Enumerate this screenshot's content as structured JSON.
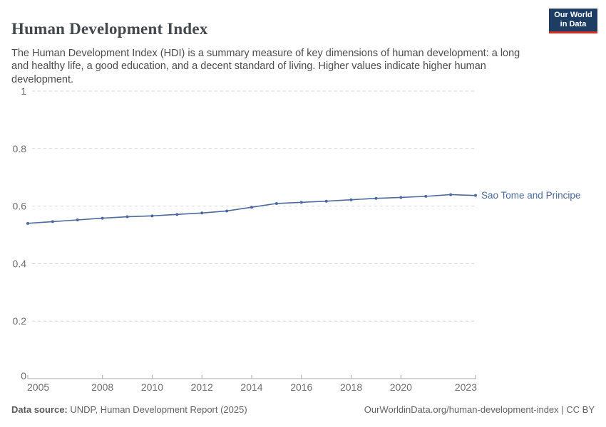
{
  "header": {
    "title": "Human Development Index",
    "subtitle": "The Human Development Index (HDI) is a summary measure of key dimensions of human development: a long and healthy life, a good education, and a decent standard of living. Higher values indicate higher human development.",
    "logo": {
      "line1": "Our World",
      "line2": "in Data"
    }
  },
  "chart_data": {
    "type": "line",
    "title": "Human Development Index",
    "xlabel": "",
    "ylabel": "",
    "x": [
      2005,
      2006,
      2007,
      2008,
      2009,
      2010,
      2011,
      2012,
      2013,
      2014,
      2015,
      2016,
      2017,
      2018,
      2019,
      2020,
      2021,
      2022,
      2023
    ],
    "series": [
      {
        "name": "Sao Tome and Principe",
        "color": "#4C6A9C",
        "values": [
          0.54,
          0.546,
          0.552,
          0.558,
          0.563,
          0.566,
          0.571,
          0.576,
          0.583,
          0.596,
          0.609,
          0.613,
          0.617,
          0.622,
          0.627,
          0.63,
          0.634,
          0.64,
          0.637
        ]
      }
    ],
    "ylim": [
      0,
      1
    ],
    "yticks": [
      0,
      0.2,
      0.4,
      0.6,
      0.8,
      1
    ],
    "xticks": [
      2005,
      2008,
      2010,
      2012,
      2014,
      2016,
      2018,
      2020,
      2023
    ],
    "grid": true,
    "grid_style": "dashed",
    "legend_position": "end-of-line-label"
  },
  "colors": {
    "line": "#4C6A9C",
    "grid": "#dadada",
    "axis": "#a8a8a8",
    "tick_text": "#6e6e6e",
    "logo_bg": "#1d3d63",
    "logo_stripe": "#d42b21"
  },
  "footer": {
    "datasource_label": "Data source:",
    "datasource_value": " UNDP, Human Development Report (2025)",
    "credit": "OurWorldinData.org/human-development-index | CC BY"
  }
}
